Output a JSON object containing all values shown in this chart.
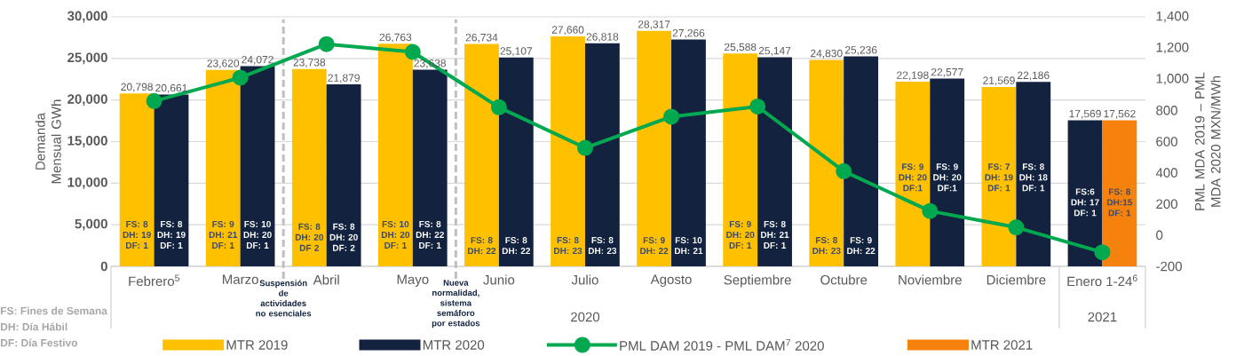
{
  "chart_data": {
    "type": "bar",
    "ylabel": "Demanda Mensual GWh",
    "y2label": "PML MDA 2019 – PML MDA 2020 MXN/MWh",
    "categories": [
      "Febrero$^{5}$",
      "Marzo",
      "Abril",
      "Mayo",
      "Junio",
      "Julio",
      "Agosto",
      "Septiembre",
      "Octubre",
      "Noviembre",
      "Diciembre",
      "Enero 1-24$^{6}$"
    ],
    "series": [
      {
        "name": "MTR 2019",
        "color": "#ffc000",
        "values": [
          20798,
          23620,
          23738,
          26763,
          26734,
          27660,
          28317,
          25588,
          24830,
          22198,
          21569,
          null
        ],
        "value_labels": [
          "20,798",
          "23,620",
          "23,738",
          "26,763",
          "26,734",
          "27,660",
          "28,317",
          "25,588",
          "24,830",
          "22,198",
          "21,569",
          null
        ]
      },
      {
        "name": "MTR 2020",
        "color": "#13233f",
        "values": [
          20661,
          24072,
          21879,
          23638,
          25107,
          26818,
          27266,
          25147,
          25236,
          22577,
          22186,
          17569
        ],
        "value_labels": [
          "20,661",
          "24,072",
          "21,879",
          "23,638",
          "25,107",
          "26,818",
          "27,266",
          "25,147",
          "25,236",
          "22,577",
          "22,186",
          "17,569"
        ]
      },
      {
        "name": "PML DAM 2019 - PML DAM$^{7}$ 2020",
        "type": "line",
        "axis": "y2",
        "color": "#00a94f",
        "values": [
          860,
          1010,
          1225,
          1175,
          820,
          560,
          760,
          825,
          410,
          155,
          50,
          -110
        ]
      },
      {
        "name": "MTR 2021",
        "color": "#f5820d",
        "values": [
          null,
          null,
          null,
          null,
          null,
          null,
          null,
          null,
          null,
          null,
          null,
          17562
        ],
        "value_labels": [
          null,
          null,
          null,
          null,
          null,
          null,
          null,
          null,
          null,
          null,
          null,
          "17,562"
        ]
      }
    ],
    "ylim": [
      0,
      30000
    ],
    "yticks": [
      0,
      {
        "value": 5000,
        "label": "5,000"
      },
      {
        "value": 10000,
        "label": "10,000"
      },
      {
        "value": 15000,
        "label": "15,000"
      },
      {
        "value": 20000,
        "label": "20,000"
      },
      {
        "value": 25000,
        "label": "25,000"
      },
      {
        "value": 30000,
        "label": "30,000"
      }
    ],
    "y2lim": [
      -200,
      1400
    ],
    "y2ticks": [
      -200,
      0,
      200,
      400,
      600,
      800,
      {
        "value": 1000,
        "label": "1,000"
      },
      {
        "value": 1200,
        "label": "1,200"
      },
      {
        "value": 1400,
        "label": "1,400"
      }
    ],
    "grid": "y",
    "legend": "bottom",
    "marker": "circle",
    "annotations": [
      "FS: Fines de Semana",
      "DH: Día Hábil",
      "DF: Día Festivo",
      "2020",
      "2021",
      "Suspensión de actividades no esenciales",
      "Nueva normalidad, sistema semáforo por estados",
      {
        "text": "FS: 8 DH: 19 DF: 1",
        "x": "Febrero$^{5}$",
        "y": 3800
      },
      {
        "text": "FS: 8 DH: 19 DF: 1",
        "x": "Febrero$^{5}$",
        "y": 3800
      },
      {
        "text": "FS: 9 DH: 21 DF: 1",
        "x": "Marzo",
        "y": 3800
      },
      {
        "text": "FS: 10 DH: 20 DF: 1",
        "x": "Marzo",
        "y": 3800
      },
      {
        "text": "FS: 8 DH: 20 DF 2",
        "x": "Abril",
        "y": 3500
      },
      {
        "text": "FS: 8 DH: 20 DF: 2",
        "x": "Abril",
        "y": 3500
      },
      {
        "text": "FS: 10 DH: 20 DF: 1",
        "x": "Mayo",
        "y": 3800
      },
      {
        "text": "FS: 8 DH: 22 DF: 1",
        "x": "Mayo",
        "y": 3800
      },
      {
        "text": "FS: 8 DH: 22",
        "x": "Junio",
        "y": 2500
      },
      {
        "text": "FS: 8 DH: 22",
        "x": "Junio",
        "y": 2500
      },
      {
        "text": "FS: 8 DH: 23",
        "x": "Julio",
        "y": 2500
      },
      {
        "text": "FS: 8 DH: 23",
        "x": "Julio",
        "y": 2500
      },
      {
        "text": "FS: 9 DH: 22",
        "x": "Agosto",
        "y": 2500
      },
      {
        "text": "FS: 10 DH: 21",
        "x": "Agosto",
        "y": 2500
      },
      {
        "text": "FS: 9 DH: 20 DF: 1",
        "x": "Septiembre",
        "y": 3800
      },
      {
        "text": "FS: 8 DH: 21 DF: 1",
        "x": "Septiembre",
        "y": 3800
      },
      {
        "text": "FS: 8 DH: 23",
        "x": "Octubre",
        "y": 2500
      },
      {
        "text": "FS: 9 DH: 22",
        "x": "Octubre",
        "y": 2500
      },
      {
        "text": "FS: 9 DH: 20 DF:1",
        "x": "Noviembre",
        "y": 10700
      },
      {
        "text": "FS: 9 DH: 20 DF:1",
        "x": "Noviembre",
        "y": 10700
      },
      {
        "text": "FS: 7 DH: 19 DF: 1",
        "x": "Diciembre",
        "y": 10700
      },
      {
        "text": "FS: 8 DH: 18 DF: 1",
        "x": "Diciembre",
        "y": 10700
      },
      {
        "text": "FS:6 DH: 17 DF: 1",
        "x": "Enero 1-24$^{6}$",
        "y": 7700
      },
      {
        "text": "FS: 8 DH:15 DF: 1",
        "x": "Enero 1-24$^{6}$",
        "y": 7700
      }
    ]
  }
}
